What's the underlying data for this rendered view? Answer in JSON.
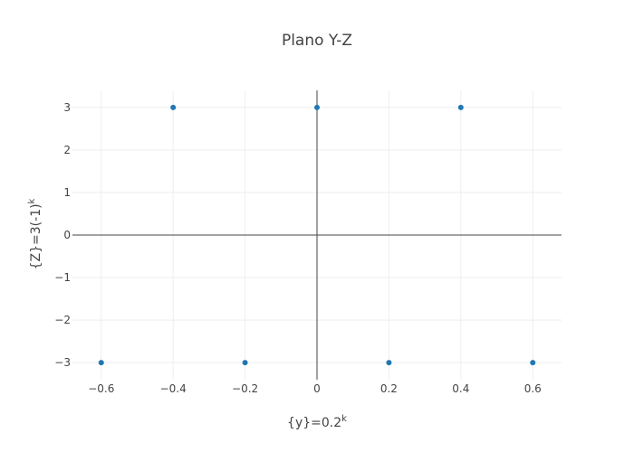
{
  "chart_data": {
    "type": "scatter",
    "title": "Plano Y-Z",
    "xlabel": {
      "base": "{y}=0.2",
      "superscript": "k"
    },
    "ylabel": {
      "base": "{Z}=3(-1)",
      "superscript": "k"
    },
    "xlim": [
      -0.68,
      0.68
    ],
    "ylim": [
      -3.4,
      3.4
    ],
    "xticks": [
      -0.6,
      -0.4,
      -0.2,
      0,
      0.2,
      0.4,
      0.6
    ],
    "xtick_labels": [
      "−0.6",
      "−0.4",
      "−0.2",
      "0",
      "0.2",
      "0.4",
      "0.6"
    ],
    "yticks": [
      -3,
      -2,
      -1,
      0,
      1,
      2,
      3
    ],
    "ytick_labels": [
      "−3",
      "−2",
      "−1",
      "0",
      "1",
      "2",
      "3"
    ],
    "grid": true,
    "zeroline": true,
    "marker_color": "#1f77b4",
    "points": [
      {
        "x": -0.6,
        "y": -3
      },
      {
        "x": -0.4,
        "y": 3
      },
      {
        "x": -0.2,
        "y": -3
      },
      {
        "x": 0,
        "y": 3
      },
      {
        "x": 0.2,
        "y": -3
      },
      {
        "x": 0.4,
        "y": 3
      },
      {
        "x": 0.6,
        "y": -3
      }
    ]
  }
}
